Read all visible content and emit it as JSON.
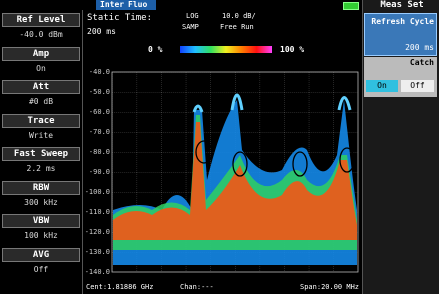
{
  "top_bar": {
    "tabs": [
      "Inter",
      "Fluo"
    ]
  },
  "left_panel": [
    {
      "label": "Ref Level",
      "value": "-40.0 dBm"
    },
    {
      "label": "Amp",
      "value": "On"
    },
    {
      "label": "Att",
      "value": "#0 dB"
    },
    {
      "label": "Trace",
      "value": "Write"
    },
    {
      "label": "Fast Sweep",
      "value": "2.2 ms"
    },
    {
      "label": "RBW",
      "value": "300 kHz"
    },
    {
      "label": "VBW",
      "value": "100 kHz"
    },
    {
      "label": "AVG",
      "value": "Off"
    }
  ],
  "header": {
    "static_time_label": "Static Time:",
    "static_time_value": "200 ms",
    "scale_mode": "LOG",
    "detector": "SAMP",
    "scale": "10.0 dB/",
    "trigger": "Free Run",
    "color_min": "0 %",
    "color_max": "100 %"
  },
  "plot": {
    "y_labels": [
      "-40.0",
      "-50.0",
      "-60.0",
      "-70.0",
      "-80.0",
      "-90.0",
      "-100.0",
      "-110.0",
      "-120.0",
      "-130.0",
      "-140.0"
    ]
  },
  "footer": {
    "center": "Cent:1.81886 GHz",
    "channel": "Chan:---",
    "span": "Span:20.00 MHz"
  },
  "right_panel": {
    "title": "Meas Set",
    "refresh_label": "Refresh Cycle",
    "refresh_value": "200 ms",
    "catch_label": "Catch",
    "on": "On",
    "off": "Off"
  }
}
